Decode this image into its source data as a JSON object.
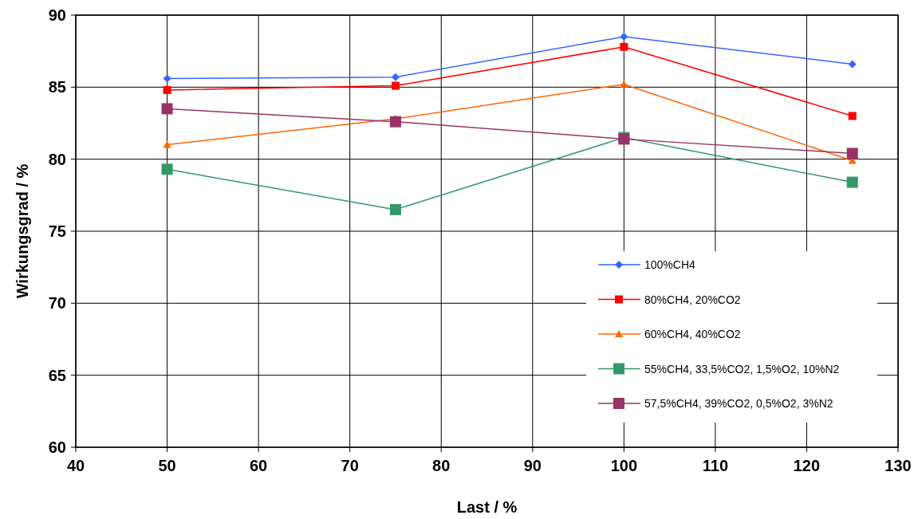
{
  "chart_data": {
    "type": "line",
    "xlabel": "Last / %",
    "ylabel": "Wirkungsgrad / %",
    "x": [
      50,
      75,
      100,
      125
    ],
    "xlim": [
      40,
      130
    ],
    "xticks": [
      40,
      50,
      60,
      70,
      80,
      90,
      100,
      110,
      120,
      130
    ],
    "ylim": [
      60,
      90
    ],
    "yticks": [
      60,
      65,
      70,
      75,
      80,
      85,
      90
    ],
    "grid": true,
    "legend": "bottom right",
    "line_style": "solid",
    "series": [
      {
        "name": "100%CH4",
        "color": "#3366ff",
        "marker": "diamond",
        "values": [
          85.6,
          85.7,
          88.5,
          86.6
        ]
      },
      {
        "name": "80%CH4, 20%CO2",
        "color": "#ff0000",
        "marker": "square",
        "values": [
          84.8,
          85.1,
          87.8,
          83.0
        ]
      },
      {
        "name": "60%CH4, 40%CO2",
        "color": "#ff6600",
        "marker": "triangle",
        "values": [
          81.0,
          82.8,
          85.2,
          79.9
        ]
      },
      {
        "name": "55%CH4, 33,5%CO2, 1,5%O2, 10%N2",
        "color": "#339966",
        "marker": "square",
        "values": [
          79.3,
          76.5,
          81.5,
          78.4
        ]
      },
      {
        "name": "57,5%CH4, 39%CO2, 0,5%O2, 3%N2",
        "color": "#993366",
        "marker": "square",
        "values": [
          83.5,
          82.6,
          81.4,
          80.4
        ]
      }
    ]
  }
}
